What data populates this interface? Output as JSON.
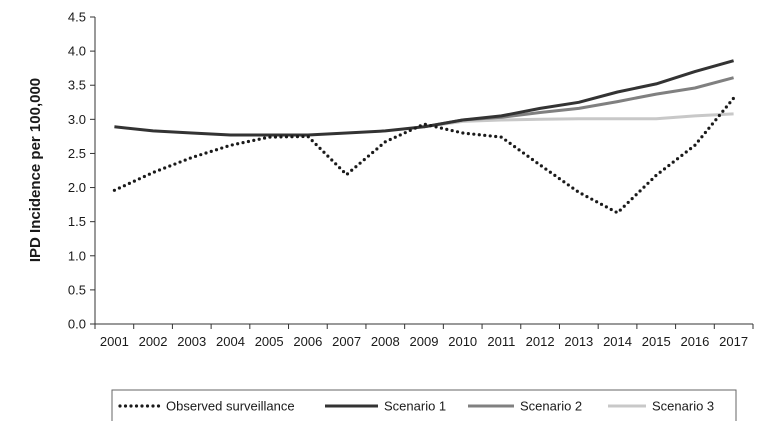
{
  "chart_data": {
    "type": "line",
    "title": "",
    "xlabel": "",
    "ylabel": "IPD Incidence per 100,000",
    "x": [
      "2001",
      "2002",
      "2003",
      "2004",
      "2005",
      "2006",
      "2007",
      "2008",
      "2009",
      "2010",
      "2011",
      "2012",
      "2013",
      "2014",
      "2015",
      "2016",
      "2017"
    ],
    "ylim": [
      0,
      4.5
    ],
    "yticks": [
      "0.0",
      "0.5",
      "1.0",
      "1.5",
      "2.0",
      "2.5",
      "3.0",
      "3.5",
      "4.0",
      "4.5"
    ],
    "grid": false,
    "legend_position": "bottom",
    "series": [
      {
        "name": "Observed surveillance",
        "color": "#1a1a1a",
        "style": "dotted",
        "values": [
          1.96,
          2.22,
          2.44,
          2.62,
          2.74,
          2.75,
          2.19,
          2.67,
          2.93,
          2.8,
          2.74,
          2.33,
          1.93,
          1.63,
          2.18,
          2.62,
          3.31
        ]
      },
      {
        "name": "Scenario 1",
        "color": "#333333",
        "style": "solid",
        "values": [
          2.89,
          2.83,
          2.8,
          2.77,
          2.77,
          2.77,
          2.8,
          2.83,
          2.89,
          2.99,
          3.05,
          3.16,
          3.25,
          3.4,
          3.52,
          3.7,
          3.86
        ]
      },
      {
        "name": "Scenario 2",
        "color": "#808080",
        "style": "solid",
        "values": [
          null,
          null,
          null,
          null,
          null,
          null,
          null,
          null,
          2.89,
          2.99,
          3.03,
          3.1,
          3.16,
          3.26,
          3.37,
          3.46,
          3.61
        ]
      },
      {
        "name": "Scenario 3",
        "color": "#c8c8c8",
        "style": "solid",
        "values": [
          null,
          null,
          null,
          null,
          null,
          null,
          null,
          null,
          2.89,
          2.97,
          2.99,
          3.0,
          3.01,
          3.01,
          3.01,
          3.05,
          3.08
        ]
      }
    ]
  }
}
